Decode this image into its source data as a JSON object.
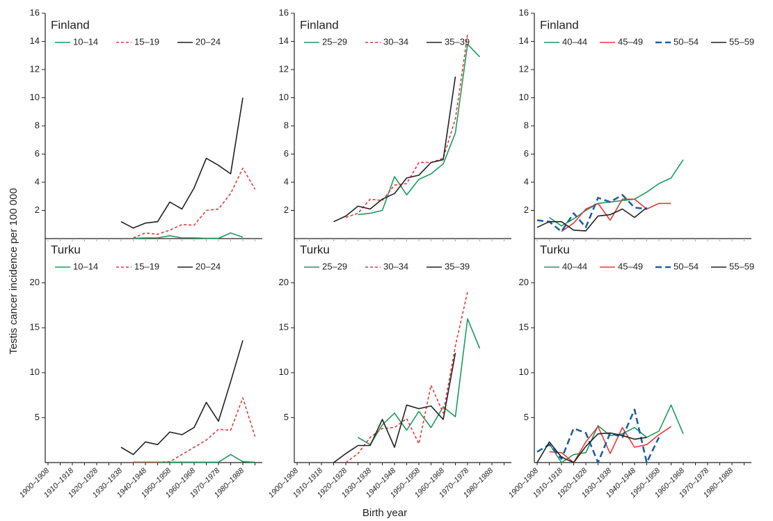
{
  "y_label": "Testis cancer incidence per 100 000",
  "x_label": "Birth year",
  "chart_data": [
    {
      "type": "line",
      "title": "Finland",
      "ylim": [
        0,
        16
      ],
      "yticks": [
        2,
        4,
        6,
        8,
        10,
        12,
        14,
        16
      ],
      "series": [
        {
          "name": "10–14",
          "color": "#1a9c5a",
          "style": "solid",
          "values": [
            null,
            null,
            null,
            null,
            null,
            null,
            null,
            0.02,
            0.05,
            0.05,
            0.2,
            0.05,
            0.05,
            0.02,
            0.02,
            0.4,
            0.1,
            null
          ]
        },
        {
          "name": "15–19",
          "color": "#e03a3a",
          "style": "dotted",
          "values": [
            null,
            null,
            null,
            null,
            null,
            null,
            null,
            0.05,
            0.4,
            0.3,
            0.6,
            1.0,
            0.95,
            2.0,
            2.1,
            3.2,
            5.0,
            3.5
          ]
        },
        {
          "name": "20–24",
          "color": "#231f20",
          "style": "solid",
          "values": [
            null,
            null,
            null,
            null,
            null,
            null,
            1.2,
            0.75,
            1.1,
            1.2,
            2.6,
            2.1,
            3.6,
            5.7,
            5.2,
            4.6,
            10.0,
            null
          ]
        }
      ]
    },
    {
      "type": "line",
      "title": "Finland",
      "ylim": [
        0,
        16
      ],
      "yticks": [
        2,
        4,
        6,
        8,
        10,
        12,
        14,
        16
      ],
      "series": [
        {
          "name": "25–29",
          "color": "#1a9c5a",
          "style": "solid",
          "values": [
            null,
            null,
            null,
            null,
            null,
            1.7,
            1.8,
            2.0,
            4.4,
            3.1,
            4.2,
            4.6,
            5.3,
            7.5,
            13.8,
            12.9,
            null,
            null
          ]
        },
        {
          "name": "30–34",
          "color": "#e03a3a",
          "style": "dotted",
          "values": [
            null,
            null,
            null,
            null,
            1.5,
            1.8,
            2.8,
            2.7,
            3.8,
            3.9,
            5.4,
            5.4,
            5.7,
            8.5,
            14.5,
            null,
            null,
            null
          ]
        },
        {
          "name": "35–39",
          "color": "#231f20",
          "style": "solid",
          "values": [
            null,
            null,
            null,
            1.2,
            1.6,
            2.3,
            2.1,
            2.8,
            3.2,
            4.3,
            4.5,
            5.4,
            5.6,
            11.5,
            null,
            null,
            null,
            null
          ]
        }
      ]
    },
    {
      "type": "line",
      "title": "Finland",
      "ylim": [
        0,
        16
      ],
      "yticks": [
        2,
        4,
        6,
        8,
        10,
        12,
        14,
        16
      ],
      "series": [
        {
          "name": "40–44",
          "color": "#1a9c5a",
          "style": "solid",
          "values": [
            null,
            1.5,
            0.9,
            1.4,
            2.0,
            2.5,
            2.6,
            2.7,
            2.8,
            3.3,
            3.9,
            4.3,
            5.6,
            null,
            null,
            null,
            null,
            null
          ]
        },
        {
          "name": "45–49",
          "color": "#e03a3a",
          "style": "solid",
          "values": [
            null,
            null,
            0.5,
            1.1,
            2.1,
            2.5,
            1.3,
            2.8,
            2.8,
            2.1,
            2.5,
            2.5,
            null,
            null,
            null,
            null,
            null,
            null
          ]
        },
        {
          "name": "50–54",
          "color": "#1f5fa0",
          "style": "dashed",
          "values": [
            1.3,
            1.2,
            0.5,
            1.8,
            0.8,
            2.9,
            2.6,
            3.1,
            2.2,
            2.1,
            null,
            null,
            null,
            null,
            null,
            null,
            null,
            null
          ]
        },
        {
          "name": "55–59",
          "color": "#231f20",
          "style": "solid",
          "values": [
            0.8,
            1.2,
            1.2,
            0.6,
            0.55,
            1.6,
            1.7,
            2.1,
            1.5,
            2.2,
            null,
            null,
            null,
            null,
            null,
            null,
            null,
            null
          ]
        }
      ]
    },
    {
      "type": "line",
      "title": "Turku",
      "ylim": [
        0,
        25
      ],
      "yticks": [
        5,
        10,
        15,
        20
      ],
      "categories": [
        "1900–1908",
        null,
        "1910–1918",
        null,
        "1920–1928",
        null,
        "1930–1938",
        null,
        "1940–1948",
        null,
        "1950–1958",
        null,
        "1960–1968",
        null,
        "1970–1978",
        null,
        "1980–1988",
        null
      ],
      "series": [
        {
          "name": "10–14",
          "color": "#1a9c5a",
          "style": "solid",
          "values": [
            null,
            null,
            null,
            null,
            null,
            null,
            null,
            0.05,
            0.05,
            0.05,
            0.05,
            0.05,
            0.05,
            0.05,
            0.05,
            0.9,
            0.1,
            0.05
          ]
        },
        {
          "name": "15–19",
          "color": "#e03a3a",
          "style": "dotted",
          "values": [
            null,
            null,
            null,
            null,
            null,
            null,
            null,
            0.05,
            0.05,
            0.05,
            0.1,
            0.9,
            1.7,
            2.5,
            3.7,
            3.6,
            7.2,
            2.9
          ]
        },
        {
          "name": "20–24",
          "color": "#231f20",
          "style": "solid",
          "values": [
            null,
            null,
            null,
            null,
            null,
            null,
            1.7,
            0.9,
            2.3,
            2.0,
            3.4,
            3.1,
            3.9,
            6.7,
            4.6,
            9.0,
            13.6,
            null
          ]
        }
      ]
    },
    {
      "type": "line",
      "title": "Turku",
      "ylim": [
        0,
        25
      ],
      "yticks": [
        5,
        10,
        15,
        20
      ],
      "categories": [
        "1900–1908",
        null,
        "1910–1918",
        null,
        "1920–1928",
        null,
        "1930–1938",
        null,
        "1940–1948",
        null,
        "1950–1958",
        null,
        "1960–1968",
        null,
        "1970–1978",
        null,
        "1980–1988",
        null
      ],
      "series": [
        {
          "name": "25–29",
          "color": "#1a9c5a",
          "style": "solid",
          "values": [
            null,
            null,
            null,
            null,
            null,
            2.8,
            2.0,
            4.2,
            5.5,
            3.6,
            5.7,
            3.9,
            6.2,
            5.1,
            16.0,
            12.7,
            null,
            null
          ]
        },
        {
          "name": "30–34",
          "color": "#e03a3a",
          "style": "dotted",
          "values": [
            null,
            null,
            null,
            null,
            0,
            1.0,
            2.8,
            3.8,
            3.9,
            4.9,
            2.1,
            8.6,
            5.5,
            13.0,
            19.0,
            null,
            null,
            null
          ]
        },
        {
          "name": "35–39",
          "color": "#231f20",
          "style": "solid",
          "values": [
            null,
            null,
            null,
            0,
            1.0,
            1.9,
            1.9,
            4.8,
            1.7,
            6.4,
            6.0,
            6.3,
            4.8,
            12.2,
            null,
            null,
            null,
            null
          ]
        }
      ]
    },
    {
      "type": "line",
      "title": "Turku",
      "ylim": [
        0,
        25
      ],
      "yticks": [
        5,
        10,
        15,
        20
      ],
      "categories": [
        "1900–1908",
        null,
        "1910–1918",
        null,
        "1920–1928",
        null,
        "1930–1938",
        null,
        "1940–1948",
        null,
        "1950–1958",
        null,
        "1960–1968",
        null,
        "1970–1978",
        null,
        "1980–1988",
        null
      ],
      "series": [
        {
          "name": "40–44",
          "color": "#1a9c5a",
          "style": "solid",
          "values": [
            null,
            2.1,
            0,
            0.9,
            1.1,
            4.1,
            3.0,
            3.2,
            3.9,
            2.8,
            3.5,
            6.4,
            3.2,
            null,
            null,
            null,
            null,
            null
          ]
        },
        {
          "name": "45–49",
          "color": "#e03a3a",
          "style": "solid",
          "values": [
            null,
            1.2,
            1.1,
            0,
            2.3,
            4.0,
            1.0,
            3.9,
            1.7,
            2.0,
            3.1,
            4.0,
            null,
            null,
            null,
            null,
            null,
            null
          ]
        },
        {
          "name": "50–54",
          "color": "#1f5fa0",
          "style": "dashed",
          "values": [
            1.2,
            2.0,
            0.4,
            3.8,
            3.3,
            0,
            3.3,
            2.8,
            5.9,
            0,
            2.8,
            null,
            null,
            null,
            null,
            null,
            null,
            null
          ]
        },
        {
          "name": "55–59",
          "color": "#231f20",
          "style": "solid",
          "values": [
            0,
            2.3,
            0.6,
            0,
            1.8,
            3.2,
            3.3,
            3.0,
            2.6,
            2.8,
            null,
            null,
            null,
            null,
            null,
            null,
            null,
            null
          ]
        }
      ]
    }
  ]
}
